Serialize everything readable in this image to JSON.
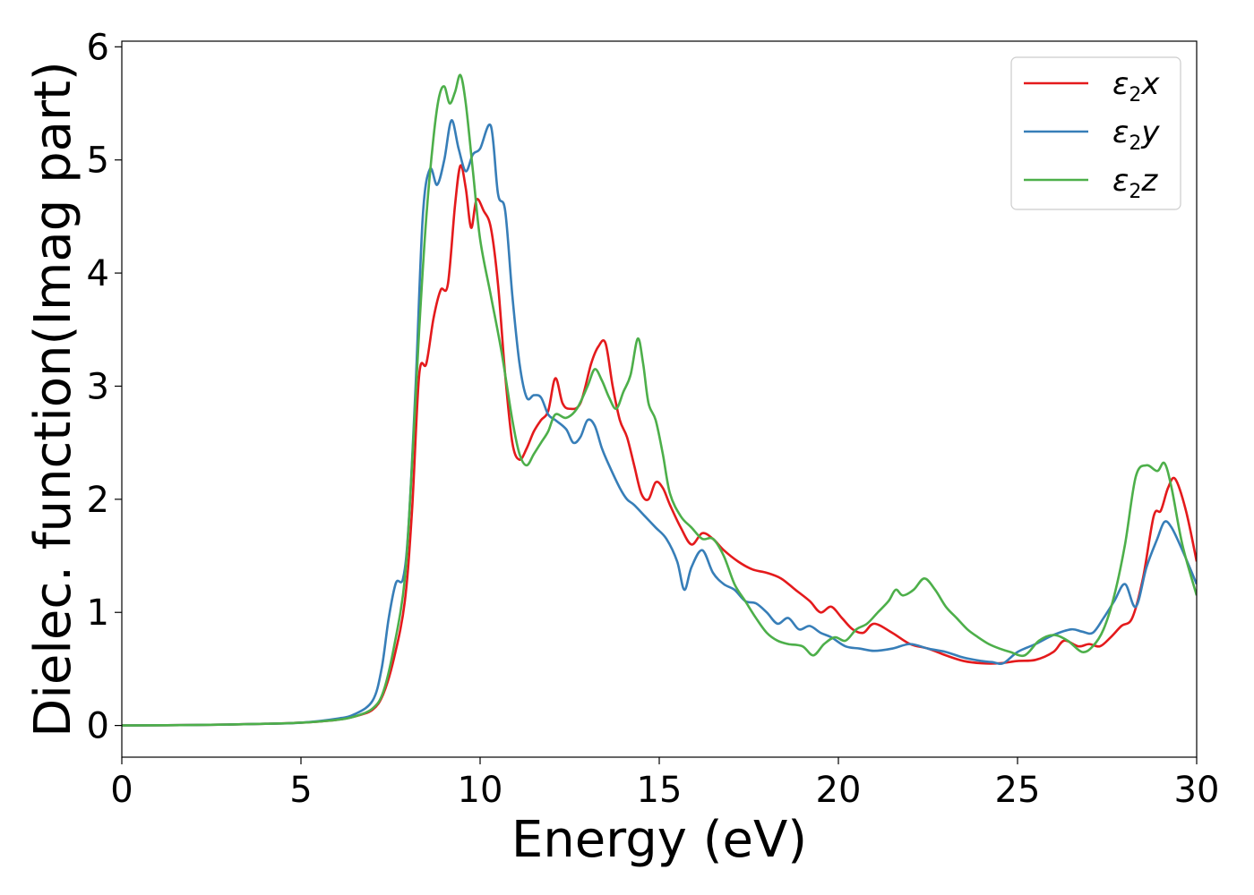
{
  "chart_data": {
    "type": "line",
    "title": "",
    "xlabel": "Energy (eV)",
    "ylabel": "Dielec. function(Imag part)",
    "xlim": [
      0,
      30
    ],
    "ylim": [
      -0.28,
      6.05
    ],
    "xticks": [
      0,
      5,
      10,
      15,
      20,
      25,
      30
    ],
    "yticks": [
      0,
      1,
      2,
      3,
      4,
      5,
      6
    ],
    "grid": false,
    "legend_position": "top-right",
    "series": [
      {
        "name": "ε2x",
        "legend": {
          "base": "ε",
          "sub": "2",
          "var": "x"
        },
        "color": "#e41a1c",
        "x": [
          0,
          2,
          4,
          5,
          6,
          6.5,
          7,
          7.3,
          7.6,
          7.9,
          8.1,
          8.3,
          8.5,
          8.7,
          8.9,
          9.1,
          9.3,
          9.45,
          9.6,
          9.75,
          9.9,
          10.1,
          10.3,
          10.5,
          10.7,
          10.9,
          11.1,
          11.3,
          11.5,
          11.7,
          11.9,
          12.1,
          12.3,
          12.5,
          12.8,
          13.1,
          13.3,
          13.5,
          13.7,
          13.9,
          14.1,
          14.3,
          14.5,
          14.7,
          14.9,
          15.1,
          15.3,
          15.6,
          15.9,
          16.2,
          16.5,
          16.8,
          17.2,
          17.6,
          18.0,
          18.4,
          18.8,
          19.2,
          19.5,
          19.8,
          20.1,
          20.4,
          20.7,
          21.0,
          21.5,
          22.0,
          22.5,
          23.0,
          23.5,
          24.0,
          24.5,
          25.0,
          25.5,
          26.0,
          26.3,
          26.7,
          27.0,
          27.3,
          27.6,
          27.9,
          28.2,
          28.5,
          28.8,
          29.0,
          29.2,
          29.4,
          29.7,
          30.0
        ],
        "y": [
          0,
          0.004,
          0.015,
          0.025,
          0.05,
          0.08,
          0.14,
          0.28,
          0.6,
          1.1,
          1.9,
          3.1,
          3.2,
          3.6,
          3.85,
          3.9,
          4.6,
          4.95,
          4.75,
          4.4,
          4.65,
          4.55,
          4.4,
          3.9,
          3.1,
          2.5,
          2.35,
          2.45,
          2.6,
          2.7,
          2.78,
          3.07,
          2.85,
          2.8,
          2.85,
          3.2,
          3.35,
          3.38,
          3.0,
          2.7,
          2.55,
          2.3,
          2.05,
          2.0,
          2.15,
          2.1,
          1.95,
          1.75,
          1.6,
          1.7,
          1.65,
          1.55,
          1.45,
          1.38,
          1.35,
          1.3,
          1.2,
          1.1,
          1.0,
          1.05,
          0.95,
          0.85,
          0.82,
          0.9,
          0.82,
          0.72,
          0.68,
          0.62,
          0.57,
          0.55,
          0.55,
          0.57,
          0.58,
          0.65,
          0.75,
          0.7,
          0.72,
          0.7,
          0.78,
          0.88,
          0.95,
          1.3,
          1.85,
          1.9,
          2.1,
          2.18,
          1.9,
          1.45
        ]
      },
      {
        "name": "ε2y",
        "legend": {
          "base": "ε",
          "sub": "2",
          "var": "y"
        },
        "color": "#377eb8",
        "x": [
          0,
          2,
          4,
          5,
          6,
          6.5,
          7,
          7.25,
          7.45,
          7.65,
          7.85,
          8.0,
          8.2,
          8.4,
          8.6,
          8.8,
          9.0,
          9.2,
          9.4,
          9.6,
          9.8,
          10.0,
          10.3,
          10.5,
          10.7,
          10.9,
          11.1,
          11.3,
          11.5,
          11.7,
          11.9,
          12.1,
          12.4,
          12.6,
          12.8,
          13.0,
          13.2,
          13.4,
          13.6,
          13.9,
          14.1,
          14.3,
          14.6,
          14.9,
          15.2,
          15.5,
          15.7,
          15.9,
          16.2,
          16.5,
          16.8,
          17.1,
          17.4,
          17.7,
          18.0,
          18.3,
          18.6,
          18.9,
          19.2,
          19.5,
          19.8,
          20.2,
          20.6,
          21.0,
          21.5,
          22.0,
          22.5,
          23.0,
          23.5,
          24.0,
          24.3,
          24.6,
          25.0,
          25.5,
          26.0,
          26.5,
          26.8,
          27.1,
          27.4,
          27.7,
          28.0,
          28.3,
          28.6,
          28.9,
          29.1,
          29.3,
          29.6,
          30.0
        ],
        "y": [
          0,
          0.004,
          0.015,
          0.025,
          0.06,
          0.1,
          0.22,
          0.5,
          0.95,
          1.26,
          1.3,
          1.75,
          3.0,
          4.5,
          4.92,
          4.78,
          5.0,
          5.35,
          5.1,
          4.9,
          5.05,
          5.1,
          5.3,
          4.7,
          4.55,
          3.8,
          3.2,
          2.9,
          2.92,
          2.9,
          2.75,
          2.7,
          2.62,
          2.5,
          2.55,
          2.7,
          2.65,
          2.45,
          2.3,
          2.1,
          2.0,
          1.95,
          1.85,
          1.75,
          1.65,
          1.45,
          1.2,
          1.4,
          1.55,
          1.35,
          1.25,
          1.2,
          1.1,
          1.08,
          1.0,
          0.9,
          0.95,
          0.85,
          0.88,
          0.82,
          0.78,
          0.7,
          0.68,
          0.66,
          0.68,
          0.72,
          0.68,
          0.65,
          0.6,
          0.57,
          0.56,
          0.55,
          0.65,
          0.72,
          0.8,
          0.85,
          0.83,
          0.82,
          0.95,
          1.1,
          1.25,
          1.05,
          1.4,
          1.65,
          1.8,
          1.75,
          1.55,
          1.25
        ]
      },
      {
        "name": "ε2z",
        "legend": {
          "base": "ε",
          "sub": "2",
          "var": "z"
        },
        "color": "#4daf4a",
        "x": [
          0,
          2,
          4,
          5,
          6,
          6.5,
          7,
          7.3,
          7.6,
          7.9,
          8.1,
          8.3,
          8.5,
          8.7,
          8.85,
          9.0,
          9.15,
          9.3,
          9.45,
          9.6,
          9.8,
          10.0,
          10.3,
          10.6,
          10.9,
          11.1,
          11.3,
          11.5,
          11.7,
          11.9,
          12.1,
          12.4,
          12.7,
          13.0,
          13.2,
          13.4,
          13.6,
          13.8,
          14.0,
          14.2,
          14.4,
          14.55,
          14.7,
          14.9,
          15.1,
          15.3,
          15.6,
          15.9,
          16.2,
          16.5,
          16.8,
          17.1,
          17.4,
          17.7,
          18.0,
          18.3,
          18.6,
          19.0,
          19.3,
          19.6,
          19.9,
          20.2,
          20.5,
          20.8,
          21.1,
          21.4,
          21.6,
          21.8,
          22.1,
          22.4,
          22.7,
          23.0,
          23.3,
          23.6,
          23.9,
          24.2,
          24.5,
          24.8,
          25.2,
          25.6,
          26.0,
          26.4,
          26.8,
          27.1,
          27.4,
          27.7,
          28.0,
          28.3,
          28.6,
          28.9,
          29.1,
          29.3,
          29.6,
          30.0
        ],
        "y": [
          0,
          0.004,
          0.015,
          0.025,
          0.05,
          0.08,
          0.15,
          0.3,
          0.7,
          1.3,
          2.3,
          3.5,
          4.5,
          5.2,
          5.55,
          5.65,
          5.5,
          5.6,
          5.75,
          5.5,
          4.9,
          4.3,
          3.8,
          3.3,
          2.7,
          2.4,
          2.3,
          2.4,
          2.5,
          2.6,
          2.75,
          2.72,
          2.8,
          3.0,
          3.15,
          3.05,
          2.9,
          2.8,
          2.95,
          3.1,
          3.42,
          3.2,
          2.85,
          2.7,
          2.4,
          2.05,
          1.85,
          1.75,
          1.65,
          1.65,
          1.5,
          1.25,
          1.1,
          0.95,
          0.82,
          0.75,
          0.72,
          0.7,
          0.62,
          0.72,
          0.78,
          0.75,
          0.85,
          0.9,
          1.0,
          1.1,
          1.2,
          1.15,
          1.2,
          1.3,
          1.2,
          1.05,
          0.95,
          0.85,
          0.78,
          0.72,
          0.68,
          0.65,
          0.62,
          0.75,
          0.8,
          0.75,
          0.65,
          0.7,
          0.85,
          1.15,
          1.6,
          2.2,
          2.3,
          2.25,
          2.32,
          2.1,
          1.6,
          1.15
        ]
      }
    ]
  }
}
